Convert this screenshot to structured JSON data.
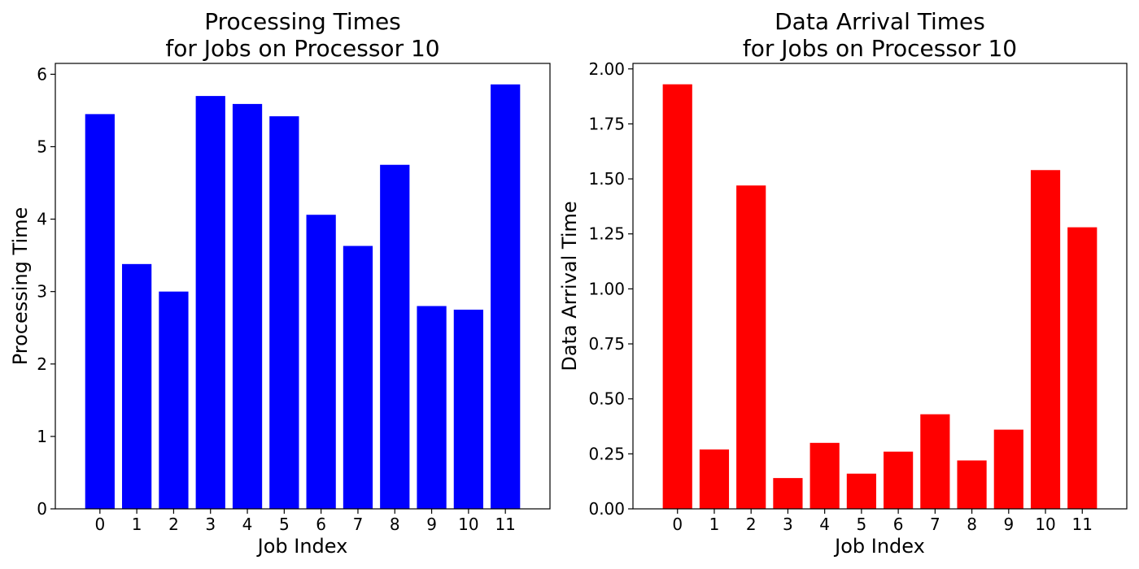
{
  "chart_data": [
    {
      "type": "bar",
      "title_lines": [
        "Processing Times",
        "for Jobs on Processor 10"
      ],
      "xlabel": "Job Index",
      "ylabel": "Processing Time",
      "categories": [
        "0",
        "1",
        "2",
        "3",
        "4",
        "5",
        "6",
        "7",
        "8",
        "9",
        "10",
        "11"
      ],
      "values": [
        5.45,
        3.38,
        3.0,
        5.7,
        5.59,
        5.42,
        4.06,
        3.63,
        4.75,
        2.8,
        2.75,
        5.86
      ],
      "ylim": [
        0,
        6.15
      ],
      "yticks": [
        0,
        1,
        2,
        3,
        4,
        5,
        6
      ],
      "ytick_labels": [
        "0",
        "1",
        "2",
        "3",
        "4",
        "5",
        "6"
      ],
      "color": "#0000ff",
      "grid": false
    },
    {
      "type": "bar",
      "title_lines": [
        "Data Arrival Times",
        "for Jobs on Processor 10"
      ],
      "xlabel": "Job Index",
      "ylabel": "Data Arrival Time",
      "categories": [
        "0",
        "1",
        "2",
        "3",
        "4",
        "5",
        "6",
        "7",
        "8",
        "9",
        "10",
        "11"
      ],
      "values": [
        1.93,
        0.27,
        1.47,
        0.14,
        0.3,
        0.16,
        0.26,
        0.43,
        0.22,
        0.36,
        1.54,
        1.28
      ],
      "ylim": [
        0,
        2.025
      ],
      "yticks": [
        0,
        0.25,
        0.5,
        0.75,
        1.0,
        1.25,
        1.5,
        1.75,
        2.0
      ],
      "ytick_labels": [
        "0.00",
        "0.25",
        "0.50",
        "0.75",
        "1.00",
        "1.25",
        "1.50",
        "1.75",
        "2.00"
      ],
      "color": "#ff0000",
      "grid": false
    }
  ]
}
